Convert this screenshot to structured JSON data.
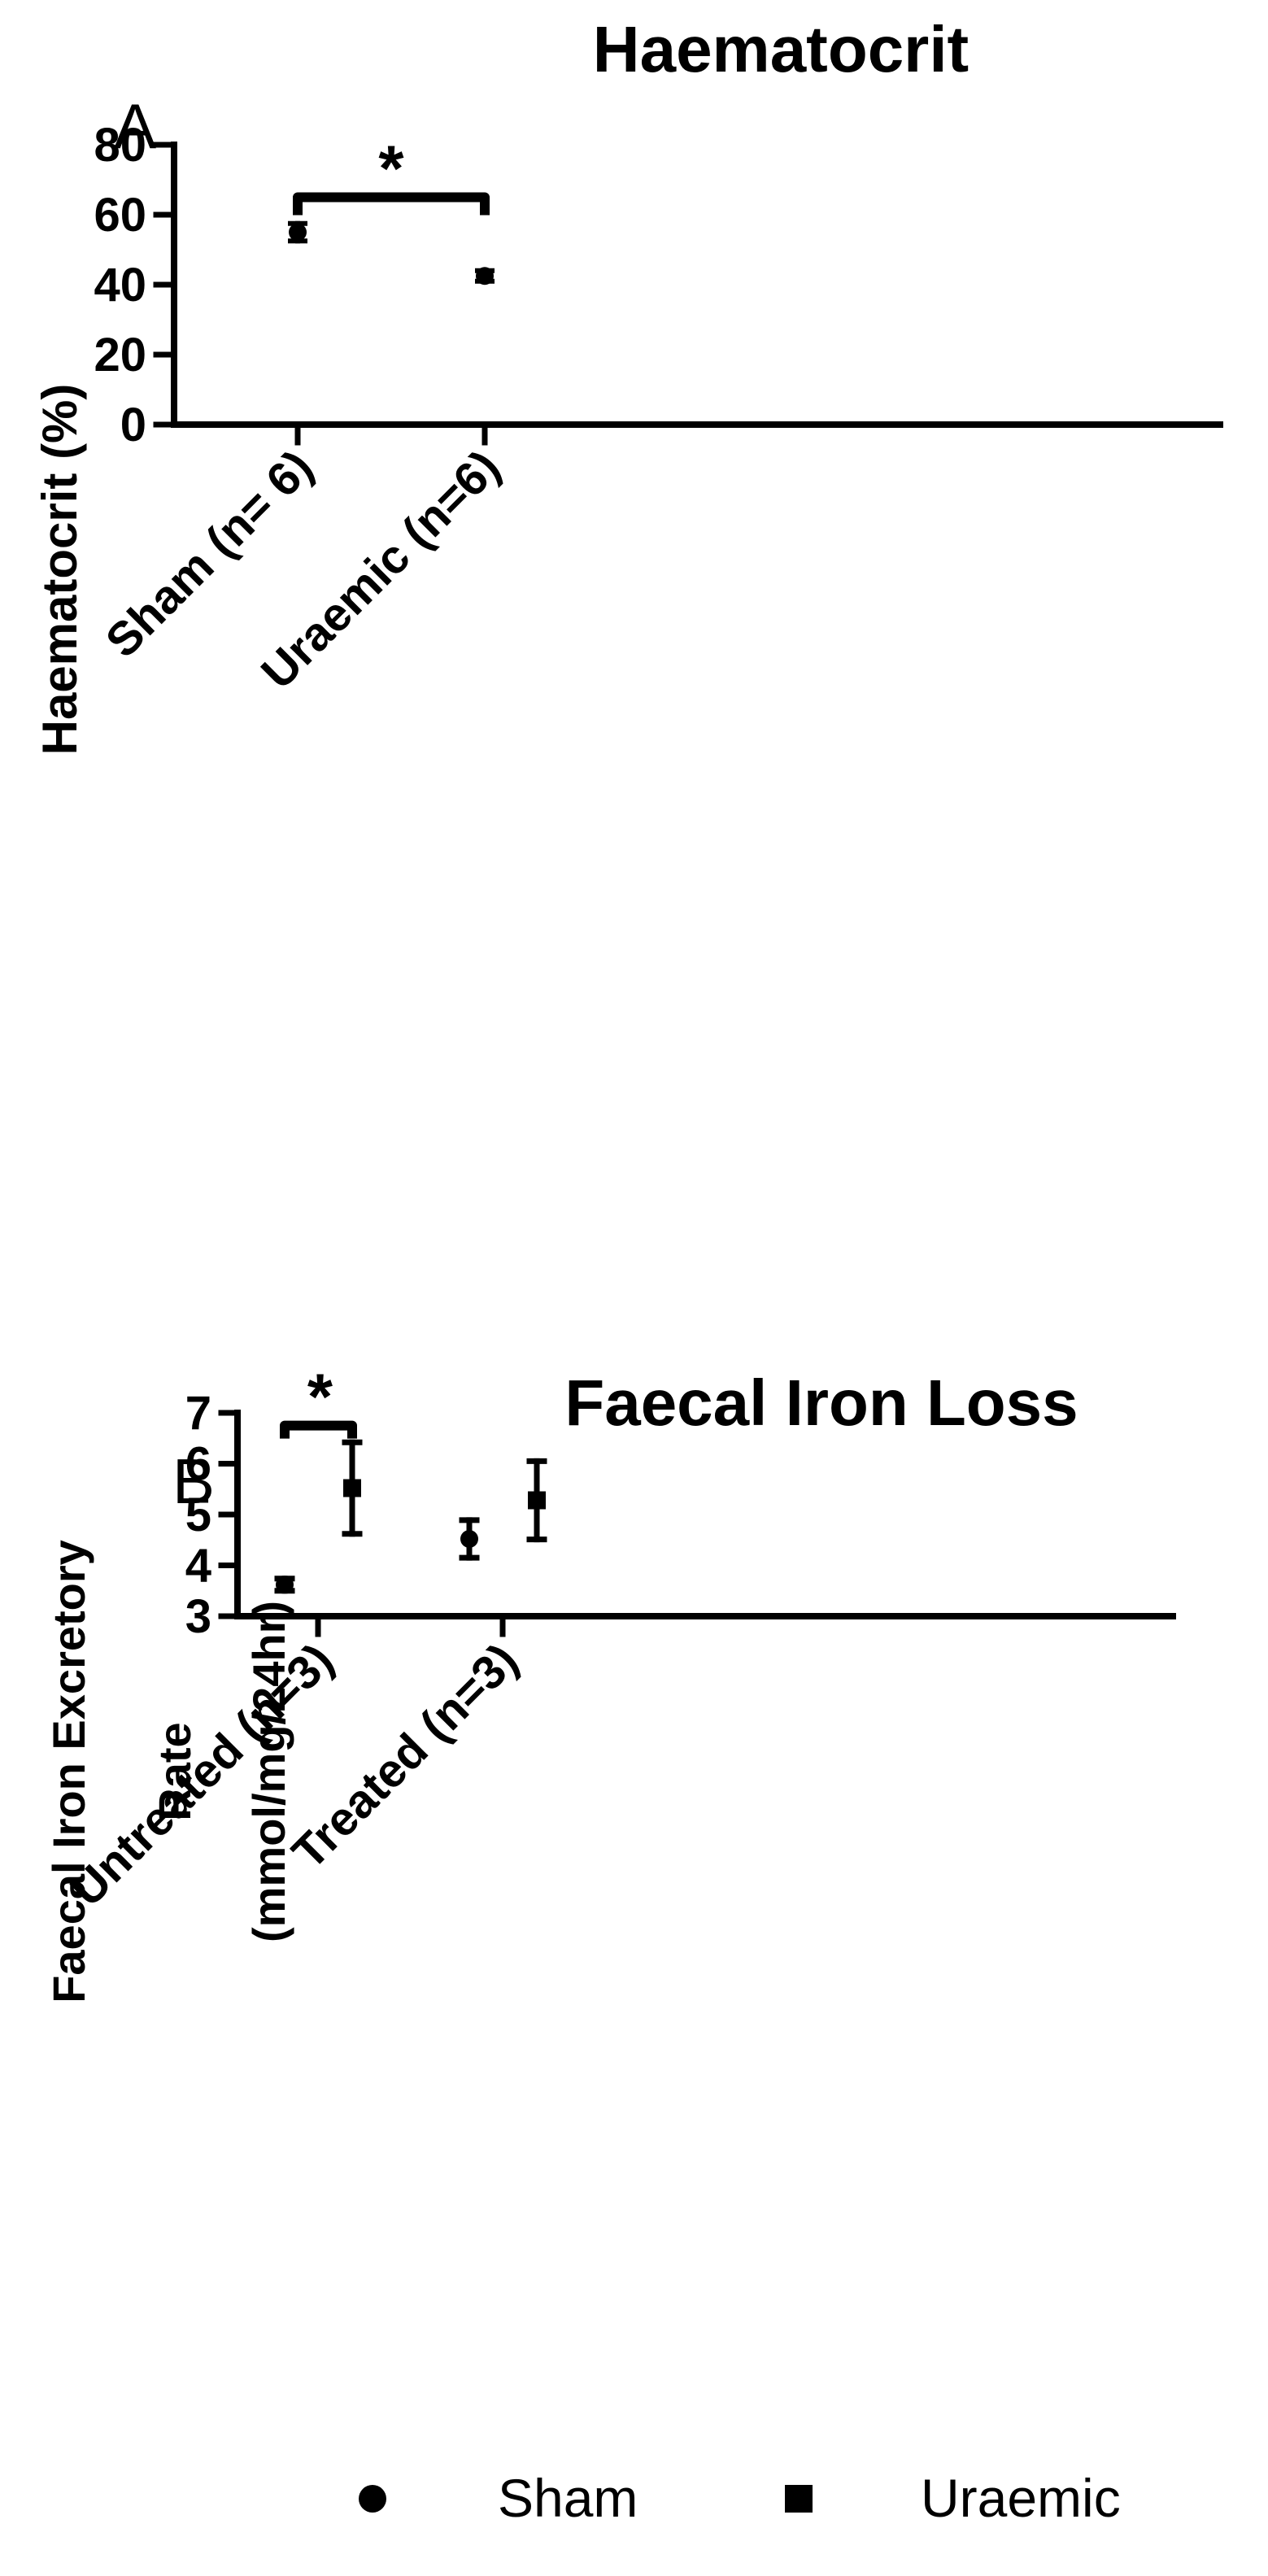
{
  "legend": {
    "placement": "bottom",
    "items": [
      {
        "label": "Sham",
        "marker": "circle"
      },
      {
        "label": "Uraemic",
        "marker": "square"
      }
    ]
  },
  "chart_data": [
    {
      "type": "scatter",
      "panel": "A",
      "title": "Haematocrit",
      "ylabel": "Haematocrit (%)",
      "xlabel": "",
      "ylim": [
        0,
        80
      ],
      "yticks": [
        0,
        20,
        40,
        60,
        80
      ],
      "categories": [
        "Sham (n= 6)",
        "Uraemic (n=6)"
      ],
      "points": [
        {
          "category": "Sham (n= 6)",
          "series": "Sham",
          "marker": "circle",
          "y": 55,
          "err": 2.5
        },
        {
          "category": "Uraemic (n=6)",
          "series": "Uraemic",
          "marker": "circle",
          "y": 42.5,
          "err": 1.5
        }
      ],
      "significance": [
        {
          "from": "Sham (n= 6)",
          "to": "Uraemic (n=6)",
          "y": 65,
          "label": "*"
        }
      ]
    },
    {
      "type": "scatter",
      "panel": "B",
      "title": "Faecal Iron Loss",
      "ylabel": [
        "Faecal Iron Excretory",
        "Rate",
        "(mmol/mg/24hr)"
      ],
      "xlabel": "",
      "ylim": [
        3,
        7
      ],
      "yticks": [
        3,
        4,
        5,
        6,
        7
      ],
      "categories": [
        "Untreated (n=3)",
        "Treated (n=3)"
      ],
      "series": [
        {
          "name": "Sham",
          "marker": "circle",
          "values": [
            3.62,
            4.52
          ],
          "errors": [
            0.12,
            0.37
          ]
        },
        {
          "name": "Uraemic",
          "marker": "square",
          "values": [
            5.52,
            5.28
          ],
          "errors": [
            0.9,
            0.77
          ]
        }
      ],
      "significance": [
        {
          "category": "Untreated (n=3)",
          "y": 6.75,
          "label": "*"
        }
      ]
    }
  ]
}
